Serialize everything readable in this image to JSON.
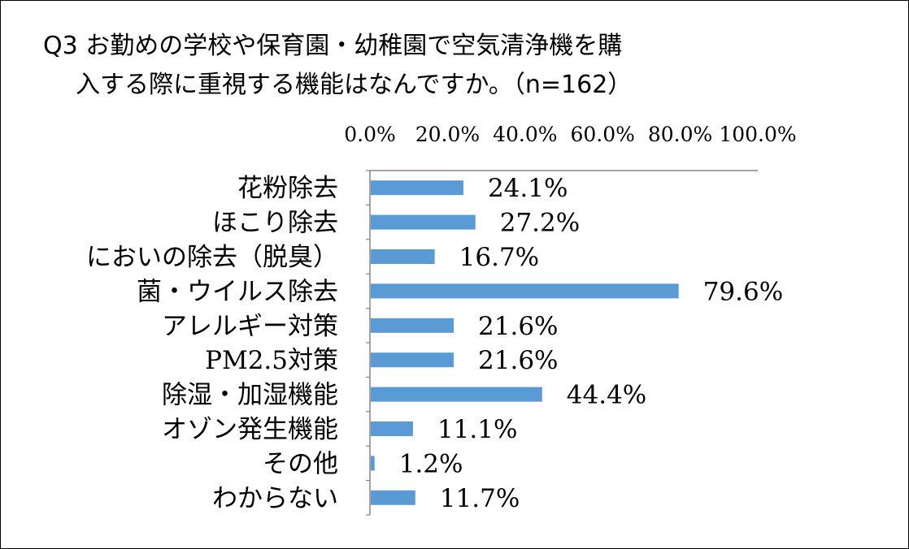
{
  "chart_data": {
    "type": "bar",
    "orientation": "horizontal",
    "title_line1": "Q3 お勤めの学校や保育園・幼稚園で空気清浄機を購",
    "title_line2": "入する際に重視する機能はなんですか。（n=162）",
    "xlabel": "",
    "ylabel": "",
    "xlim": [
      0,
      100
    ],
    "ticks": [
      "0.0%",
      "20.0%",
      "40.0%",
      "60.0%",
      "80.0%",
      "100.0%"
    ],
    "tick_values": [
      0,
      20,
      40,
      60,
      80,
      100
    ],
    "axis_position": "top",
    "grid": false,
    "legend": "none",
    "bar_color": "#5b9bd5",
    "categories": [
      "花粉除去",
      "ほこり除去",
      "においの除去（脱臭）",
      "菌・ウイルス除去",
      "アレルギー対策",
      "PM2.5対策",
      "除湿・加湿機能",
      "オゾン発生機能",
      "その他",
      "わからない"
    ],
    "values": [
      24.1,
      27.2,
      16.7,
      79.6,
      21.6,
      21.6,
      44.4,
      11.1,
      1.2,
      11.7
    ],
    "data_labels": [
      "24.1%",
      "27.2%",
      "16.7%",
      "79.6%",
      "21.6%",
      "21.6%",
      "44.4%",
      "11.1%",
      "1.2%",
      "11.7%"
    ]
  }
}
